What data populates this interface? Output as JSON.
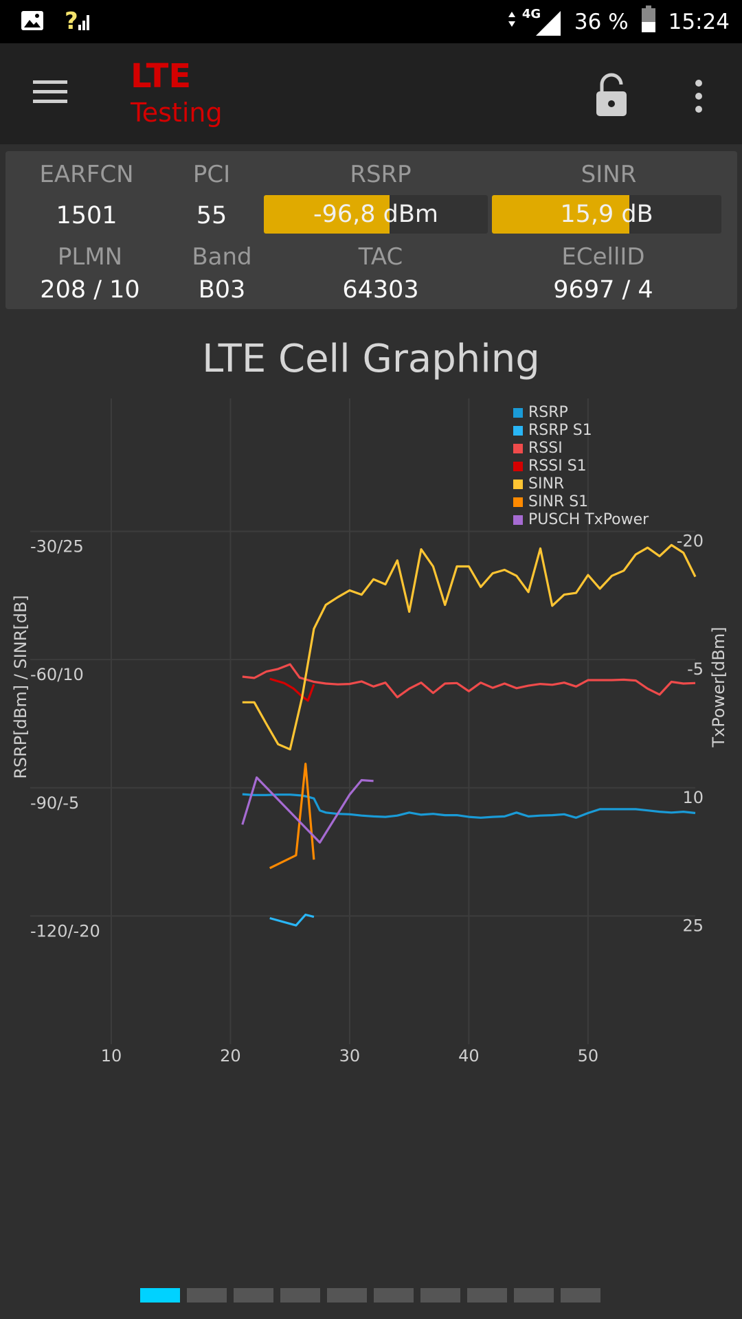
{
  "status": {
    "network_type": "4G",
    "battery": "36 %",
    "time": "15:24"
  },
  "app": {
    "title_main": "LTE",
    "title_sub": "Testing"
  },
  "cell": {
    "earfcn_label": "EARFCN",
    "earfcn": "1501",
    "pci_label": "PCI",
    "pci": "55",
    "rsrp_label": "RSRP",
    "rsrp": "-96,8 dBm",
    "rsrp_fill": 0.56,
    "sinr_label": "SINR",
    "sinr": "15,9 dB",
    "sinr_fill": 0.6,
    "plmn_label": "PLMN",
    "plmn": "208 / 10",
    "band_label": "Band",
    "band": "B03",
    "tac_label": "TAC",
    "tac": "64303",
    "ecellid_label": "ECellID",
    "ecellid": "9697 / 4"
  },
  "chart_title": "LTE Cell Graphing",
  "chart_data": {
    "type": "line",
    "title": "LTE Cell Graphing",
    "xlabel": "",
    "ylabel_left": "RSRP[dBm] / SINR[dB]",
    "ylabel_right": "TxPower[dBm]",
    "x_ticks": [
      10,
      20,
      30,
      40,
      50
    ],
    "y_left_ticks": [
      "-30/25",
      "-60/10",
      "-90/-5",
      "-120/-20"
    ],
    "y_right_ticks": [
      "-20",
      "-5",
      "10",
      "25"
    ],
    "xlim": [
      3.2,
      59
    ],
    "ylim_rsrp": [
      -150,
      -0.5
    ],
    "grid": true,
    "legend_position": "top-right",
    "series": [
      {
        "name": "RSRP",
        "color": "#1a9bd7",
        "axis": "rsrp",
        "x": [
          21,
          22,
          23,
          24,
          25,
          26,
          26.5,
          27,
          27.5,
          28,
          29,
          30,
          31,
          32,
          33,
          34,
          35,
          36,
          37,
          38,
          39,
          40,
          41,
          42,
          43,
          44,
          45,
          46,
          47,
          48,
          49,
          50,
          51,
          52,
          53,
          54,
          55,
          56,
          57,
          58,
          59
        ],
        "y": [
          -91.5,
          -91.7,
          -91.7,
          -91.6,
          -91.6,
          -91.8,
          -92.1,
          -92.5,
          -95.3,
          -95.8,
          -96.1,
          -96.2,
          -96.5,
          -96.7,
          -96.8,
          -96.5,
          -95.8,
          -96.3,
          -96.1,
          -96.4,
          -96.4,
          -96.8,
          -97,
          -96.8,
          -96.7,
          -95.8,
          -96.7,
          -96.5,
          -96.4,
          -96.2,
          -97,
          -95.9,
          -95.0,
          -95.0,
          -95.0,
          -95.0,
          -95.3,
          -95.6,
          -95.8,
          -95.6,
          -95.9
        ]
      },
      {
        "name": "RSRP S1",
        "color": "#29b6f6",
        "axis": "rsrp",
        "x": [
          23.3,
          25.5,
          26.3,
          27
        ],
        "y": [
          -120.5,
          -122.2,
          -119.7,
          -120.2
        ]
      },
      {
        "name": "RSSI",
        "color": "#ef4b4b",
        "axis": "rsrp",
        "x": [
          21,
          22,
          23,
          24,
          25,
          25.8,
          27,
          28,
          29,
          30,
          31,
          32,
          33,
          34,
          35,
          36,
          37,
          38,
          39,
          40,
          41,
          42,
          43,
          44,
          45,
          46,
          47,
          48,
          49,
          50,
          51,
          52,
          53,
          54,
          55,
          56,
          57,
          58,
          59
        ],
        "y": [
          -64,
          -64.3,
          -62.8,
          -62.2,
          -61.1,
          -64.2,
          -65.2,
          -65.6,
          -65.8,
          -65.7,
          -65.1,
          -66.3,
          -65.4,
          -68.8,
          -66.8,
          -65.4,
          -67.8,
          -65.6,
          -65.5,
          -67.4,
          -65.4,
          -66.6,
          -65.6,
          -66.7,
          -66.1,
          -65.7,
          -65.9,
          -65.4,
          -66.3,
          -64.8,
          -64.8,
          -64.8,
          -64.7,
          -64.9,
          -66.8,
          -68.2,
          -65.2,
          -65.6,
          -65.5
        ]
      },
      {
        "name": "RSSI S1",
        "color": "#d40000",
        "axis": "rsrp",
        "x": [
          23.3,
          24.5,
          25.3,
          26,
          26.5,
          27
        ],
        "y": [
          -64.5,
          -65.5,
          -66.8,
          -68.6,
          -69.6,
          -65.8
        ]
      },
      {
        "name": "SINR",
        "color": "#ffc533",
        "axis": "sinr",
        "x": [
          21,
          22,
          23,
          24,
          25,
          26,
          27,
          28,
          29,
          30,
          31,
          32,
          33,
          34,
          35,
          36,
          37,
          38,
          39,
          40,
          41,
          42,
          43,
          44,
          45,
          46,
          47,
          48,
          49,
          50,
          51,
          52,
          53,
          54,
          55,
          56,
          57,
          58,
          59
        ],
        "y": [
          5,
          5,
          2.5,
          0.1,
          -0.5,
          5.5,
          13.6,
          16.4,
          17.3,
          18.1,
          17.6,
          19.4,
          18.8,
          21.6,
          15.6,
          22.9,
          20.9,
          16.4,
          20.9,
          20.9,
          18.5,
          20.1,
          20.5,
          19.8,
          17.9,
          23,
          16.3,
          17.6,
          17.8,
          19.9,
          18.3,
          19.8,
          20.4,
          22.3,
          23.1,
          22.1,
          23.4,
          22.5,
          19.7
        ]
      },
      {
        "name": "SINR S1",
        "color": "#ff8a00",
        "axis": "sinr",
        "x": [
          23.3,
          25.5,
          26.3,
          27
        ],
        "y": [
          -14.4,
          -12.9,
          -2.2,
          -13.4
        ]
      },
      {
        "name": "PUSCH TxPower",
        "color": "#a66bd2",
        "axis": "tx",
        "x": [
          21,
          22.2,
          27.5,
          30,
          31,
          32
        ],
        "y": [
          14.3,
          8.8,
          16.4,
          10.8,
          9.1,
          9.2
        ]
      }
    ]
  },
  "pager": {
    "pages": 10,
    "active": 0
  }
}
